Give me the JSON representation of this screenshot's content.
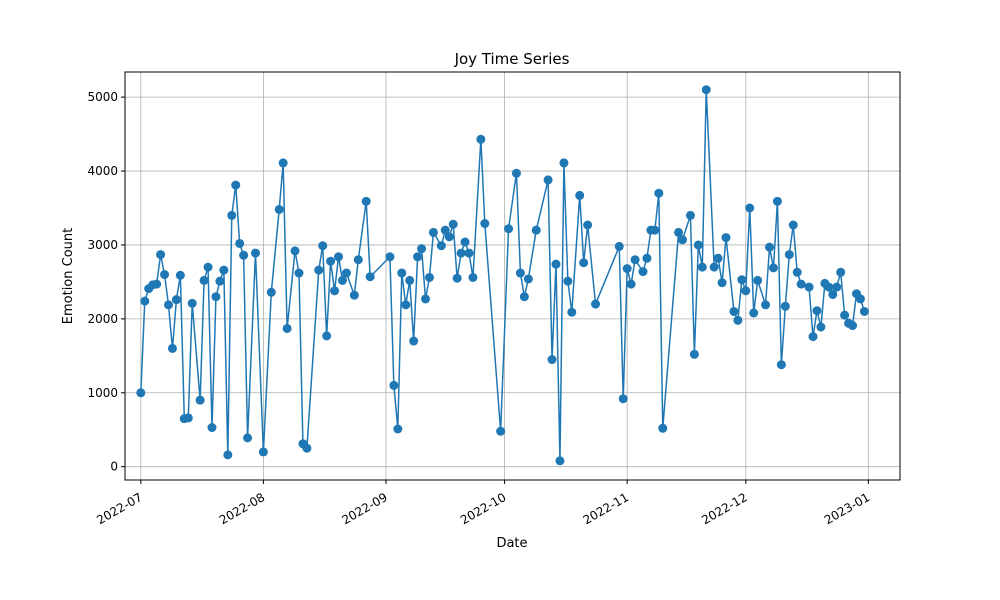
{
  "chart_data": {
    "type": "line",
    "title": "Joy Time Series",
    "xlabel": "Date",
    "ylabel": "Emotion Count",
    "xlim": [
      "2022-06-27",
      "2023-01-09"
    ],
    "ylim": [
      -180,
      5340
    ],
    "grid": true,
    "color": "#1f77b4",
    "marker": "circle",
    "x_ticks": [
      "2022-07-01",
      "2022-08-01",
      "2022-09-01",
      "2022-10-01",
      "2022-11-01",
      "2022-12-01",
      "2023-01-01"
    ],
    "x_tick_labels": [
      "2022-07",
      "2022-08",
      "2022-09",
      "2022-10",
      "2022-11",
      "2022-12",
      "2023-01"
    ],
    "y_ticks": [
      0,
      1000,
      2000,
      3000,
      4000,
      5000
    ],
    "y_tick_labels": [
      "0",
      "1000",
      "2000",
      "3000",
      "4000",
      "5000"
    ],
    "series": [
      {
        "x": [
          "2022-07-01",
          "2022-07-02",
          "2022-07-03",
          "2022-07-04",
          "2022-07-05",
          "2022-07-06",
          "2022-07-07",
          "2022-07-08",
          "2022-07-09",
          "2022-07-10",
          "2022-07-11",
          "2022-07-12",
          "2022-07-13",
          "2022-07-14",
          "2022-07-16",
          "2022-07-17",
          "2022-07-18",
          "2022-07-19",
          "2022-07-20",
          "2022-07-21",
          "2022-07-22",
          "2022-07-23",
          "2022-07-24",
          "2022-07-25",
          "2022-07-26",
          "2022-07-27",
          "2022-07-28",
          "2022-07-30",
          "2022-08-01",
          "2022-08-03",
          "2022-08-05",
          "2022-08-06",
          "2022-08-07",
          "2022-08-09",
          "2022-08-10",
          "2022-08-11",
          "2022-08-12",
          "2022-08-15",
          "2022-08-16",
          "2022-08-17",
          "2022-08-18",
          "2022-08-19",
          "2022-08-20",
          "2022-08-21",
          "2022-08-22",
          "2022-08-24",
          "2022-08-25",
          "2022-08-27",
          "2022-08-28",
          "2022-09-02",
          "2022-09-03",
          "2022-09-04",
          "2022-09-05",
          "2022-09-06",
          "2022-09-07",
          "2022-09-08",
          "2022-09-09",
          "2022-09-10",
          "2022-09-11",
          "2022-09-12",
          "2022-09-13",
          "2022-09-15",
          "2022-09-16",
          "2022-09-17",
          "2022-09-18",
          "2022-09-19",
          "2022-09-20",
          "2022-09-21",
          "2022-09-22",
          "2022-09-23",
          "2022-09-25",
          "2022-09-26",
          "2022-09-30",
          "2022-10-02",
          "2022-10-04",
          "2022-10-05",
          "2022-10-06",
          "2022-10-07",
          "2022-10-09",
          "2022-10-12",
          "2022-10-13",
          "2022-10-14",
          "2022-10-15",
          "2022-10-16",
          "2022-10-17",
          "2022-10-18",
          "2022-10-20",
          "2022-10-21",
          "2022-10-22",
          "2022-10-24",
          "2022-10-30",
          "2022-10-31",
          "2022-11-01",
          "2022-11-02",
          "2022-11-03",
          "2022-11-05",
          "2022-11-06",
          "2022-11-07",
          "2022-11-08",
          "2022-11-09",
          "2022-11-10",
          "2022-11-14",
          "2022-11-15",
          "2022-11-17",
          "2022-11-18",
          "2022-11-19",
          "2022-11-20",
          "2022-11-21",
          "2022-11-23",
          "2022-11-24",
          "2022-11-25",
          "2022-11-26",
          "2022-11-28",
          "2022-11-29",
          "2022-11-30",
          "2022-12-01",
          "2022-12-02",
          "2022-12-03",
          "2022-12-04",
          "2022-12-06",
          "2022-12-07",
          "2022-12-08",
          "2022-12-09",
          "2022-12-10",
          "2022-12-11",
          "2022-12-12",
          "2022-12-13",
          "2022-12-14",
          "2022-12-15",
          "2022-12-17",
          "2022-12-18",
          "2022-12-19",
          "2022-12-20",
          "2022-12-21",
          "2022-12-22",
          "2022-12-23",
          "2022-12-24",
          "2022-12-25",
          "2022-12-26",
          "2022-12-27",
          "2022-12-28",
          "2022-12-29",
          "2022-12-30",
          "2022-12-31"
        ],
        "y": [
          1000,
          2240,
          2410,
          2460,
          2470,
          2870,
          2600,
          2190,
          1600,
          2260,
          2590,
          650,
          660,
          2210,
          900,
          2520,
          2700,
          530,
          2300,
          2510,
          2660,
          160,
          3400,
          3810,
          3020,
          2860,
          390,
          2890,
          200,
          2360,
          3480,
          4110,
          1870,
          2920,
          2620,
          310,
          250,
          2660,
          2990,
          1770,
          2780,
          2380,
          2840,
          2520,
          2620,
          2320,
          2800,
          3590,
          2570,
          2840,
          1100,
          510,
          2620,
          2190,
          2520,
          1700,
          2840,
          2950,
          2270,
          2560,
          3170,
          2990,
          3200,
          3110,
          3280,
          2550,
          2890,
          3040,
          2890,
          2560,
          4430,
          3290,
          480,
          3220,
          3970,
          2620,
          2300,
          2540,
          3200,
          3880,
          1450,
          2740,
          80,
          4110,
          2510,
          2090,
          3670,
          2760,
          3270,
          2200,
          2980,
          920,
          2680,
          2470,
          2800,
          2640,
          2820,
          3200,
          3200,
          3700,
          520,
          3170,
          3070,
          3400,
          1520,
          3000,
          2700,
          5100,
          2700,
          2820,
          2490,
          3100,
          2100,
          1980,
          2530,
          2380,
          3500,
          2080,
          2520,
          2190,
          2970,
          2690,
          3590,
          1380,
          2170,
          2870,
          3270,
          2630,
          2470,
          2430,
          1760,
          2110,
          1890,
          2480,
          2430,
          2330,
          2430,
          2630,
          2050,
          1940,
          1910,
          2340,
          2270,
          2100
        ]
      }
    ]
  }
}
